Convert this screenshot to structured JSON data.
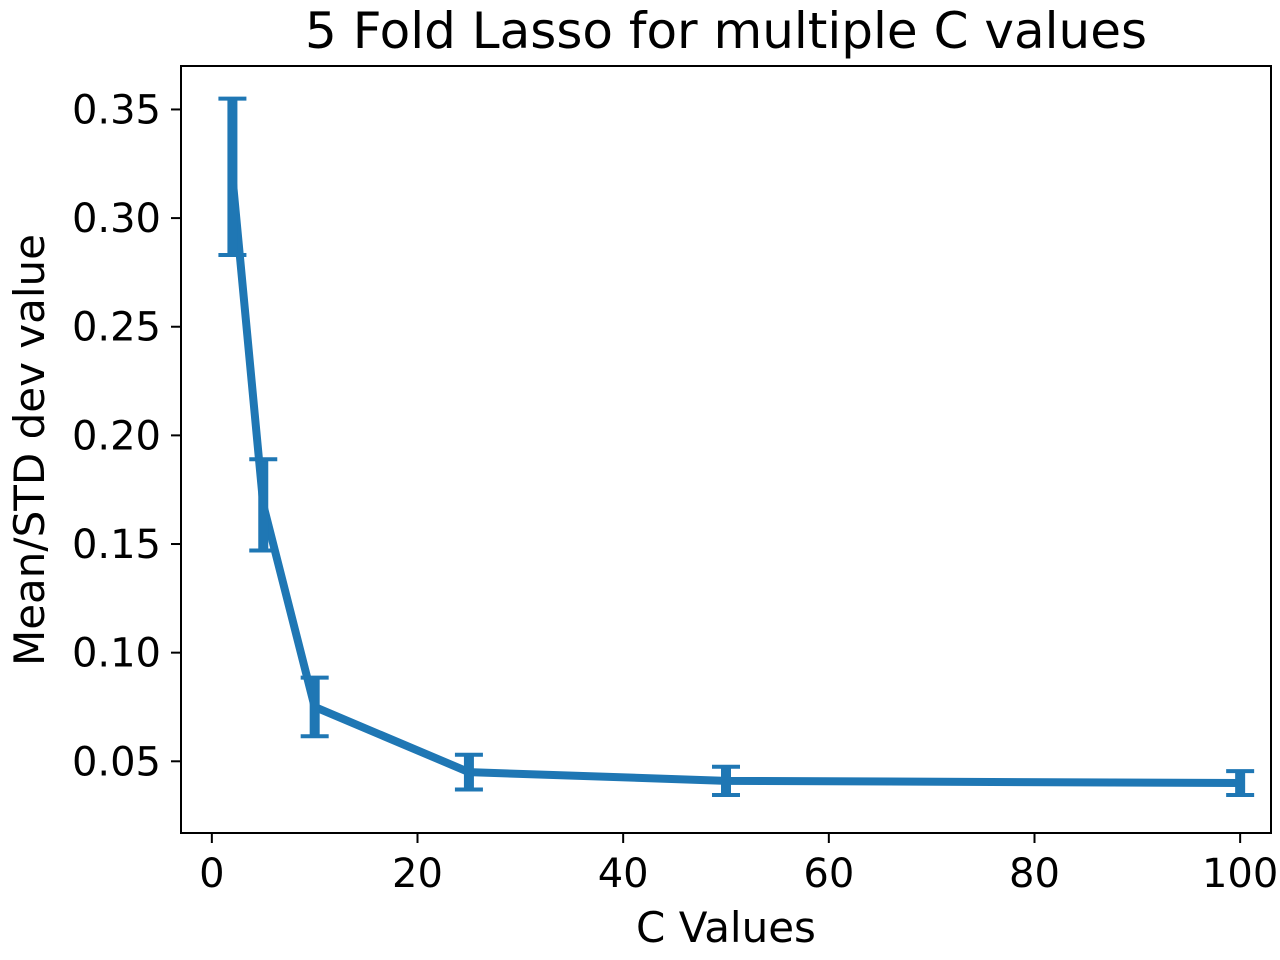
{
  "chart_data": {
    "type": "line",
    "title": "5 Fold Lasso for multiple C values",
    "xlabel": "C Values",
    "ylabel": "Mean/STD dev value",
    "xlim": [
      -3,
      103
    ],
    "ylim": [
      0.017,
      0.37
    ],
    "xticks": [
      0,
      20,
      40,
      60,
      80,
      100
    ],
    "xtick_labels": [
      "0",
      "20",
      "40",
      "60",
      "80",
      "100"
    ],
    "yticks": [
      0.05,
      0.1,
      0.15,
      0.2,
      0.25,
      0.3,
      0.35
    ],
    "ytick_labels": [
      "0.05",
      "0.10",
      "0.15",
      "0.20",
      "0.25",
      "0.30",
      "0.35"
    ],
    "grid": false,
    "series": [
      {
        "color": "#1f77b4",
        "x": [
          2,
          5,
          10,
          25,
          50,
          100
        ],
        "y": [
          0.319,
          0.168,
          0.075,
          0.045,
          0.041,
          0.04
        ],
        "yerr": [
          0.036,
          0.021,
          0.0135,
          0.008,
          0.0065,
          0.0055
        ]
      }
    ]
  }
}
